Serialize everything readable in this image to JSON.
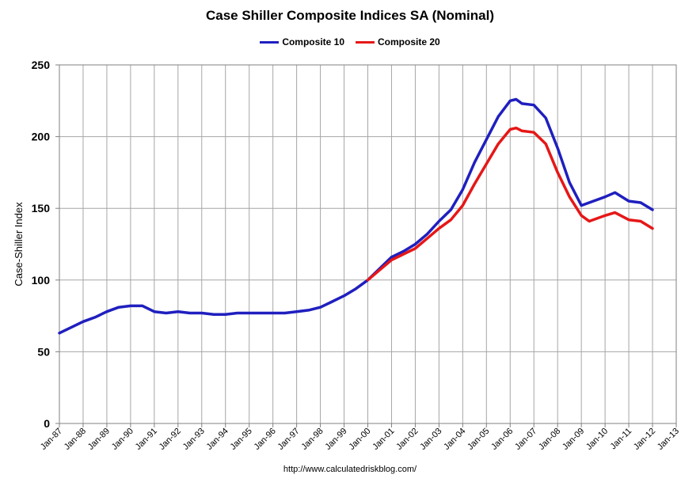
{
  "chart_data": {
    "type": "line",
    "title": "Case Shiller Composite Indices SA (Nominal)",
    "ylabel": "Case-Shiller Index",
    "xlabel": "",
    "ylim": [
      0,
      250
    ],
    "yticks": [
      0,
      50,
      100,
      150,
      200,
      250
    ],
    "xlim": [
      1987,
      2013
    ],
    "x_tick_labels": [
      "Jan-87",
      "Jan-88",
      "Jan-89",
      "Jan-90",
      "Jan-91",
      "Jan-92",
      "Jan-93",
      "Jan-94",
      "Jan-95",
      "Jan-96",
      "Jan-97",
      "Jan-98",
      "Jan-99",
      "Jan-00",
      "Jan-01",
      "Jan-02",
      "Jan-03",
      "Jan-04",
      "Jan-05",
      "Jan-06",
      "Jan-07",
      "Jan-08",
      "Jan-09",
      "Jan-10",
      "Jan-11",
      "Jan-12",
      "Jan-13"
    ],
    "grid": true,
    "legend_position": "top",
    "series": [
      {
        "name": "Composite 10",
        "color": "#1f1fbf",
        "x": [
          "Jan-87",
          "Jul-87",
          "Jan-88",
          "Jul-88",
          "Jan-89",
          "Jul-89",
          "Jan-90",
          "Jul-90",
          "Jan-91",
          "Jul-91",
          "Jan-92",
          "Jul-92",
          "Jan-93",
          "Jul-93",
          "Jan-94",
          "Jul-94",
          "Jan-95",
          "Jul-95",
          "Jan-96",
          "Jul-96",
          "Jan-97",
          "Jul-97",
          "Jan-98",
          "Jul-98",
          "Jan-99",
          "Jul-99",
          "Jan-00",
          "Jul-00",
          "Jan-01",
          "Jul-01",
          "Jan-02",
          "Jul-02",
          "Jan-03",
          "Jul-03",
          "Jan-04",
          "Jul-04",
          "Jan-05",
          "Jul-05",
          "Jan-06",
          "Apr-06",
          "Jul-06",
          "Jan-07",
          "Jul-07",
          "Jan-08",
          "Jul-08",
          "Jan-09",
          "May-09",
          "Jan-10",
          "Jun-10",
          "Jan-11",
          "Jul-11",
          "Jan-12"
        ],
        "values": [
          63,
          67,
          71,
          74,
          78,
          81,
          82,
          82,
          78,
          77,
          78,
          77,
          77,
          76,
          76,
          77,
          77,
          77,
          77,
          77,
          78,
          79,
          81,
          85,
          89,
          94,
          100,
          108,
          116,
          120,
          125,
          132,
          141,
          149,
          163,
          182,
          198,
          214,
          225,
          226,
          223,
          222,
          213,
          192,
          168,
          152,
          154,
          158,
          161,
          155,
          154,
          149
        ]
      },
      {
        "name": "Composite 20",
        "color": "#e61717",
        "x": [
          "Jan-00",
          "Jul-00",
          "Jan-01",
          "Jul-01",
          "Jan-02",
          "Jul-02",
          "Jan-03",
          "Jul-03",
          "Jan-04",
          "Jul-04",
          "Jan-05",
          "Jul-05",
          "Jan-06",
          "Apr-06",
          "Jul-06",
          "Jan-07",
          "Jul-07",
          "Jan-08",
          "Jul-08",
          "Jan-09",
          "May-09",
          "Jan-10",
          "Jun-10",
          "Jan-11",
          "Jul-11",
          "Jan-12"
        ],
        "values": [
          100,
          107,
          114,
          118,
          122,
          129,
          136,
          142,
          152,
          167,
          181,
          195,
          205,
          206,
          204,
          203,
          195,
          175,
          158,
          145,
          141,
          145,
          147,
          142,
          141,
          136
        ]
      }
    ],
    "annotation": "http://www.calculatedriskblog.com/"
  }
}
